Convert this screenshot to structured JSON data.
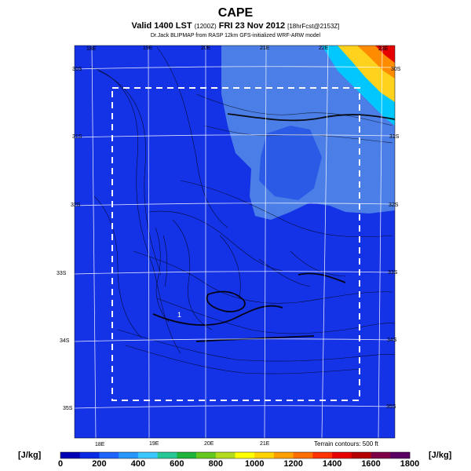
{
  "header": {
    "title": "CAPE",
    "subtitle_main": "Valid 1400 LST",
    "subtitle_paren": "(1200Z)",
    "subtitle_date": "FRI 23 Nov 2012",
    "subtitle_forecast": "[18hrFcst@2153Z]",
    "credit": "Dr.Jack BLIPMAP from RASP 12km GFS-initialized WRF-ARW model"
  },
  "map": {
    "lon_labels_top": [
      "18E",
      "19E",
      "20E",
      "21E",
      "22E",
      "23E"
    ],
    "lon_labels_bottom": [
      "18E",
      "19E",
      "20E",
      "21E"
    ],
    "lat_labels_right": [
      "30S",
      "31S",
      "32S",
      "33S",
      "34S",
      "35S"
    ],
    "lat_labels_left": [
      "30S",
      "31S",
      "32S",
      "33S",
      "34S",
      "35S"
    ],
    "marker_label": "1",
    "terrain_note": "Terrain contours: 500 ft",
    "colors": {
      "background": "#1432e6",
      "light_region": "#4b7ee6",
      "mid_region": "#2a5ae6",
      "hot_1": "#ffd21e",
      "hot_2": "#ff8c00",
      "hot_3": "#e60000",
      "hot_4": "#00c8ff"
    }
  },
  "colorbar": {
    "unit_left": "[J/kg]",
    "unit_right": "[J/kg]",
    "ticks": [
      "0",
      "200",
      "400",
      "600",
      "800",
      "1000",
      "1200",
      "1400",
      "1600",
      "1800"
    ],
    "colors": [
      "#0000b4",
      "#0a2ae6",
      "#1e64ff",
      "#2896ff",
      "#3cc8ff",
      "#28c896",
      "#1eb43c",
      "#64c81e",
      "#b4dc1e",
      "#ffff00",
      "#ffd200",
      "#ffa000",
      "#ff6e00",
      "#ff3200",
      "#e60000",
      "#b40000",
      "#7d0046",
      "#5a0064"
    ]
  }
}
